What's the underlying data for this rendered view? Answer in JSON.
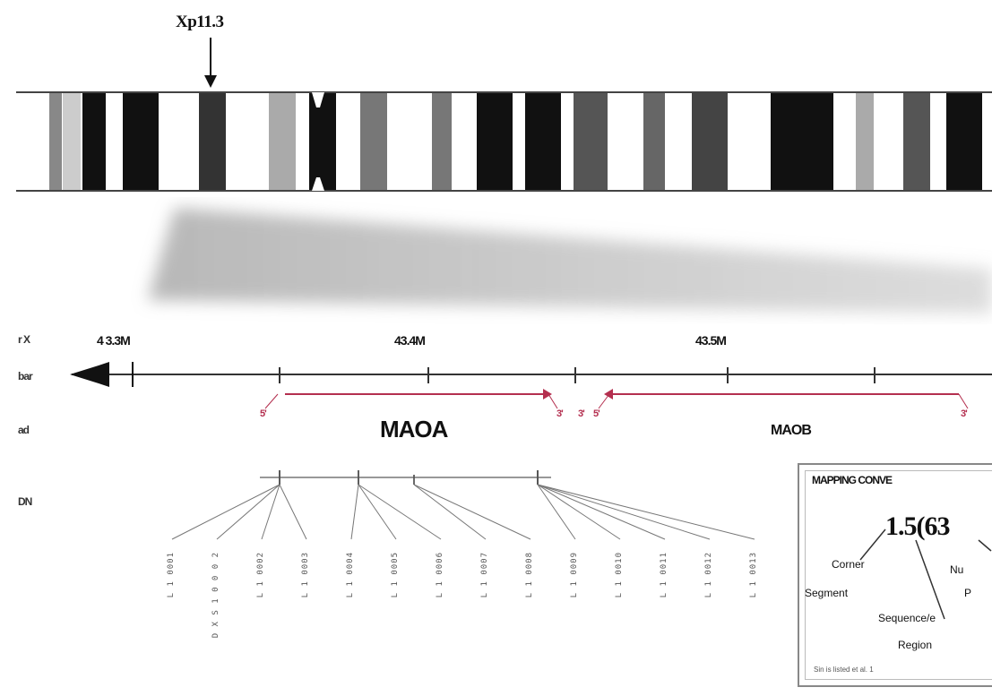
{
  "band_label": "Xp11.3",
  "row_labels": [
    "r X",
    "bar",
    "ad",
    "DN"
  ],
  "coordinates": [
    "4 3.3M",
    "43.4M",
    "43.5M"
  ],
  "genes": [
    {
      "name": "MAOA"
    },
    {
      "name": "MAOB"
    }
  ],
  "exon_marks": [
    "5'",
    "3'",
    "3'",
    "5'",
    "3'"
  ],
  "markers": [
    "L 1 0001",
    "D X S 1 0 0 0 2",
    "L 1 0002",
    "L 1 0003",
    "L 1 0004",
    "L 1 0005",
    "L 1 0006",
    "L 1 0007",
    "L 1 0008",
    "L 1 0009",
    "L 1 0010",
    "L 1 0011",
    "L 1 0012",
    "L 1 0013"
  ],
  "legend": {
    "title": "MAPPING CONVE",
    "code": "1.5(63",
    "labels": [
      "Corner",
      "Nu",
      "Segment",
      "P",
      "Sequence/e",
      "Region"
    ],
    "footer": "Sin is listed et al. 1"
  },
  "colors": {
    "locus_arrow": "#b42f4f",
    "axis": "#333333",
    "background": "#ffffff"
  }
}
